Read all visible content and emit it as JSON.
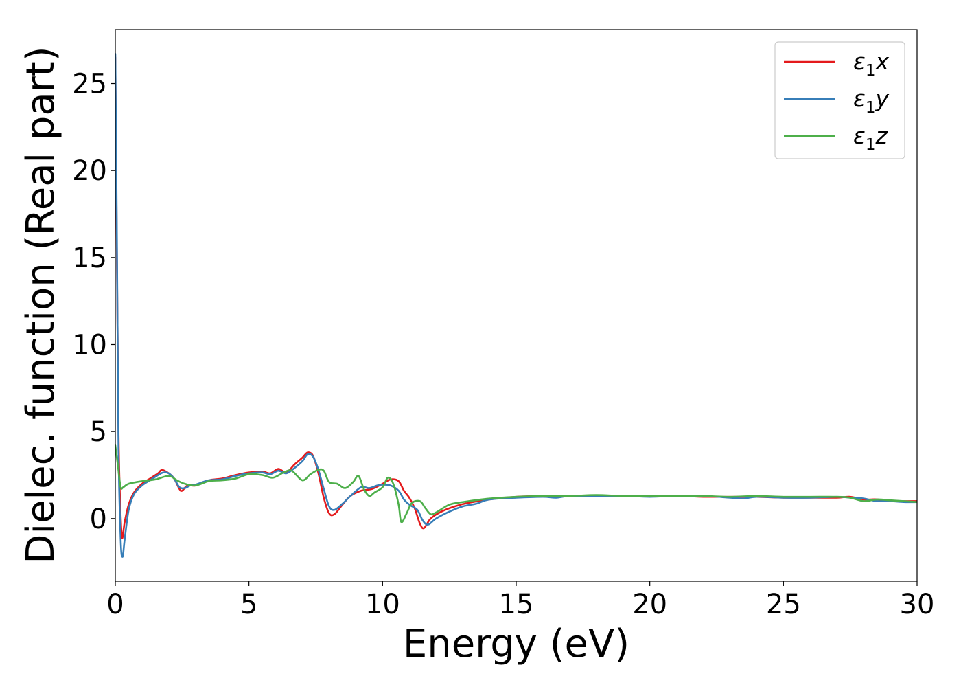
{
  "chart_data": {
    "type": "line",
    "title": "",
    "xlabel": "Energy (eV)",
    "ylabel": "Dielec. function (Real part)",
    "xlim": [
      0,
      30
    ],
    "ylim": [
      -3.6,
      28.1
    ],
    "xticks": [
      0,
      5,
      10,
      15,
      20,
      25,
      30
    ],
    "yticks": [
      0,
      5,
      10,
      15,
      20,
      25
    ],
    "grid": false,
    "legend_position": "top-right",
    "series": [
      {
        "name": "ε₁x",
        "legend_main": "ε",
        "legend_sub": "1",
        "legend_tail": "x",
        "color": "#e41a1c",
        "points": [
          [
            0,
            26.5
          ],
          [
            0.06,
            15
          ],
          [
            0.12,
            5
          ],
          [
            0.18,
            1
          ],
          [
            0.25,
            -1.1
          ],
          [
            0.35,
            -0.2
          ],
          [
            0.5,
            0.8
          ],
          [
            0.7,
            1.5
          ],
          [
            1.0,
            2.0
          ],
          [
            1.3,
            2.3
          ],
          [
            1.6,
            2.6
          ],
          [
            1.75,
            2.8
          ],
          [
            2.0,
            2.6
          ],
          [
            2.2,
            2.3
          ],
          [
            2.4,
            1.7
          ],
          [
            2.5,
            1.6
          ],
          [
            2.7,
            1.9
          ],
          [
            3.0,
            1.9
          ],
          [
            3.5,
            2.2
          ],
          [
            4.0,
            2.3
          ],
          [
            4.5,
            2.5
          ],
          [
            5.0,
            2.65
          ],
          [
            5.5,
            2.7
          ],
          [
            5.8,
            2.6
          ],
          [
            6.1,
            2.85
          ],
          [
            6.4,
            2.65
          ],
          [
            6.7,
            3.1
          ],
          [
            7.0,
            3.5
          ],
          [
            7.2,
            3.8
          ],
          [
            7.4,
            3.6
          ],
          [
            7.6,
            2.6
          ],
          [
            7.8,
            1.2
          ],
          [
            8.0,
            0.3
          ],
          [
            8.2,
            0.25
          ],
          [
            8.5,
            0.8
          ],
          [
            8.8,
            1.3
          ],
          [
            9.2,
            1.6
          ],
          [
            9.6,
            1.7
          ],
          [
            10.0,
            2.0
          ],
          [
            10.3,
            2.25
          ],
          [
            10.6,
            2.15
          ],
          [
            10.8,
            1.6
          ],
          [
            11.0,
            1.2
          ],
          [
            11.2,
            0.6
          ],
          [
            11.4,
            -0.3
          ],
          [
            11.55,
            -0.55
          ],
          [
            11.8,
            0
          ],
          [
            12.2,
            0.4
          ],
          [
            12.7,
            0.7
          ],
          [
            13.2,
            0.9
          ],
          [
            14.0,
            1.1
          ],
          [
            15.0,
            1.25
          ],
          [
            16.0,
            1.3
          ],
          [
            17.0,
            1.3
          ],
          [
            18.0,
            1.3
          ],
          [
            19.0,
            1.3
          ],
          [
            20.0,
            1.3
          ],
          [
            21.0,
            1.3
          ],
          [
            22.0,
            1.25
          ],
          [
            23.0,
            1.25
          ],
          [
            24.0,
            1.25
          ],
          [
            25.0,
            1.2
          ],
          [
            26.0,
            1.2
          ],
          [
            27.0,
            1.2
          ],
          [
            27.5,
            1.25
          ],
          [
            28.0,
            1.1
          ],
          [
            28.5,
            1.1
          ],
          [
            29.0,
            1.0
          ],
          [
            29.5,
            1.0
          ],
          [
            30.0,
            1.0
          ]
        ]
      },
      {
        "name": "ε₁y",
        "legend_main": "ε",
        "legend_sub": "1",
        "legend_tail": "y",
        "color": "#377eb8",
        "points": [
          [
            0,
            26.7
          ],
          [
            0.06,
            16
          ],
          [
            0.12,
            4
          ],
          [
            0.2,
            -1.2
          ],
          [
            0.27,
            -2.2
          ],
          [
            0.35,
            -1.2
          ],
          [
            0.5,
            0.5
          ],
          [
            0.7,
            1.4
          ],
          [
            1.0,
            1.9
          ],
          [
            1.3,
            2.2
          ],
          [
            1.6,
            2.5
          ],
          [
            1.8,
            2.65
          ],
          [
            2.0,
            2.6
          ],
          [
            2.2,
            2.3
          ],
          [
            2.4,
            1.8
          ],
          [
            2.6,
            1.75
          ],
          [
            2.8,
            1.9
          ],
          [
            3.0,
            1.95
          ],
          [
            3.5,
            2.2
          ],
          [
            4.0,
            2.25
          ],
          [
            4.5,
            2.45
          ],
          [
            5.0,
            2.6
          ],
          [
            5.5,
            2.65
          ],
          [
            5.8,
            2.55
          ],
          [
            6.1,
            2.75
          ],
          [
            6.4,
            2.6
          ],
          [
            6.7,
            2.9
          ],
          [
            7.0,
            3.3
          ],
          [
            7.2,
            3.7
          ],
          [
            7.4,
            3.55
          ],
          [
            7.6,
            2.8
          ],
          [
            7.8,
            1.7
          ],
          [
            8.0,
            0.7
          ],
          [
            8.2,
            0.5
          ],
          [
            8.5,
            0.85
          ],
          [
            8.8,
            1.3
          ],
          [
            9.2,
            1.8
          ],
          [
            9.5,
            1.75
          ],
          [
            9.8,
            1.9
          ],
          [
            10.0,
            1.95
          ],
          [
            10.3,
            1.9
          ],
          [
            10.6,
            1.6
          ],
          [
            10.8,
            1.1
          ],
          [
            11.0,
            0.8
          ],
          [
            11.3,
            0.5
          ],
          [
            11.5,
            -0.1
          ],
          [
            11.7,
            -0.35
          ],
          [
            12.0,
            0
          ],
          [
            12.5,
            0.4
          ],
          [
            13.0,
            0.7
          ],
          [
            13.5,
            0.85
          ],
          [
            14.0,
            1.1
          ],
          [
            15.0,
            1.2
          ],
          [
            16.0,
            1.25
          ],
          [
            16.5,
            1.2
          ],
          [
            17.0,
            1.3
          ],
          [
            18.0,
            1.3
          ],
          [
            19.0,
            1.3
          ],
          [
            20.0,
            1.25
          ],
          [
            21.0,
            1.3
          ],
          [
            22.0,
            1.3
          ],
          [
            23.0,
            1.2
          ],
          [
            23.5,
            1.15
          ],
          [
            24.0,
            1.25
          ],
          [
            25.0,
            1.2
          ],
          [
            26.0,
            1.2
          ],
          [
            27.0,
            1.25
          ],
          [
            27.5,
            1.2
          ],
          [
            28.0,
            1.15
          ],
          [
            28.5,
            1.0
          ],
          [
            29.0,
            1.0
          ],
          [
            29.5,
            0.95
          ],
          [
            30.0,
            0.95
          ]
        ]
      },
      {
        "name": "ε₁z",
        "legend_main": "ε",
        "legend_sub": "1",
        "legend_tail": "z",
        "color": "#4daf4a",
        "points": [
          [
            0,
            4.2
          ],
          [
            0.1,
            3.0
          ],
          [
            0.2,
            1.8
          ],
          [
            0.3,
            1.8
          ],
          [
            0.5,
            2.0
          ],
          [
            1.0,
            2.15
          ],
          [
            1.5,
            2.25
          ],
          [
            2.0,
            2.45
          ],
          [
            2.3,
            2.2
          ],
          [
            2.6,
            2.0
          ],
          [
            3.0,
            1.9
          ],
          [
            3.5,
            2.15
          ],
          [
            4.0,
            2.2
          ],
          [
            4.5,
            2.3
          ],
          [
            5.0,
            2.55
          ],
          [
            5.5,
            2.5
          ],
          [
            5.9,
            2.35
          ],
          [
            6.3,
            2.65
          ],
          [
            6.6,
            2.75
          ],
          [
            7.0,
            2.2
          ],
          [
            7.3,
            2.55
          ],
          [
            7.6,
            2.8
          ],
          [
            7.8,
            2.75
          ],
          [
            8.0,
            2.1
          ],
          [
            8.3,
            2.0
          ],
          [
            8.6,
            1.75
          ],
          [
            8.9,
            2.1
          ],
          [
            9.1,
            2.45
          ],
          [
            9.3,
            1.7
          ],
          [
            9.5,
            1.3
          ],
          [
            9.7,
            1.5
          ],
          [
            10.0,
            1.8
          ],
          [
            10.2,
            2.35
          ],
          [
            10.4,
            2.0
          ],
          [
            10.6,
            0.8
          ],
          [
            10.7,
            -0.2
          ],
          [
            10.9,
            0.3
          ],
          [
            11.1,
            0.9
          ],
          [
            11.4,
            1.0
          ],
          [
            11.6,
            0.6
          ],
          [
            11.8,
            0.25
          ],
          [
            12.0,
            0.35
          ],
          [
            12.5,
            0.8
          ],
          [
            13.0,
            0.95
          ],
          [
            14.0,
            1.15
          ],
          [
            15.0,
            1.25
          ],
          [
            16.0,
            1.3
          ],
          [
            17.0,
            1.3
          ],
          [
            18.0,
            1.35
          ],
          [
            19.0,
            1.3
          ],
          [
            20.0,
            1.3
          ],
          [
            21.0,
            1.3
          ],
          [
            22.0,
            1.3
          ],
          [
            23.0,
            1.25
          ],
          [
            24.0,
            1.3
          ],
          [
            25.0,
            1.25
          ],
          [
            26.0,
            1.25
          ],
          [
            27.0,
            1.25
          ],
          [
            27.5,
            1.2
          ],
          [
            28.0,
            1.0
          ],
          [
            28.5,
            1.1
          ],
          [
            29.0,
            1.05
          ],
          [
            29.5,
            1.0
          ],
          [
            30.0,
            0.95
          ]
        ]
      }
    ]
  }
}
